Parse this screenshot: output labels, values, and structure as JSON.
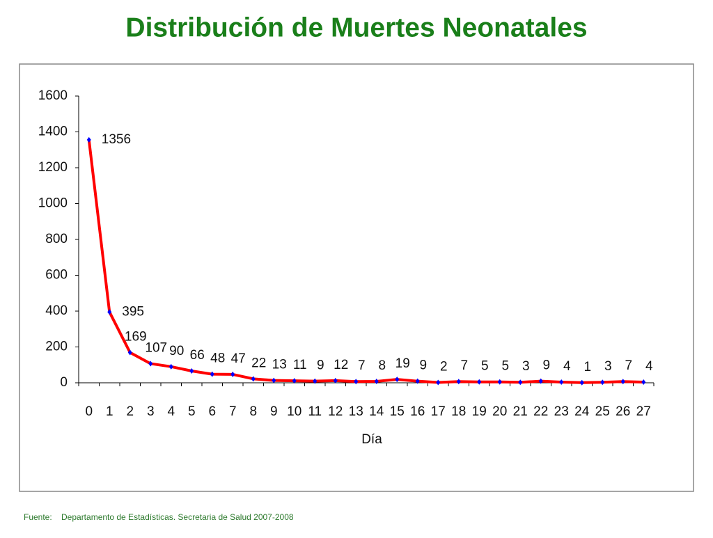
{
  "chart_data": {
    "type": "line",
    "title": "Distribución de Muertes Neonatales",
    "x_label": "Día",
    "categories": [
      "0",
      "1",
      "2",
      "3",
      "4",
      "5",
      "6",
      "7",
      "8",
      "9",
      "10",
      "11",
      "12",
      "13",
      "14",
      "15",
      "16",
      "17",
      "18",
      "19",
      "20",
      "21",
      "22",
      "23",
      "24",
      "25",
      "26",
      "27"
    ],
    "series": [
      {
        "name": "Muertes",
        "color": "#ff0000",
        "marker_color": "#0000ff",
        "values": [
          1356,
          395,
          169,
          107,
          90,
          66,
          48,
          47,
          22,
          13,
          11,
          9,
          12,
          7,
          8,
          19,
          9,
          2,
          7,
          5,
          5,
          3,
          9,
          4,
          1,
          3,
          7,
          4
        ]
      }
    ],
    "ylim": [
      0,
      1600
    ],
    "yticks": [
      0,
      200,
      400,
      600,
      800,
      1000,
      1200,
      1400,
      1600
    ],
    "grid": false
  },
  "source": {
    "label": "Fuente:",
    "text": "Departamento de Estadísticas. Secretaria de Salud 2007-2008"
  }
}
